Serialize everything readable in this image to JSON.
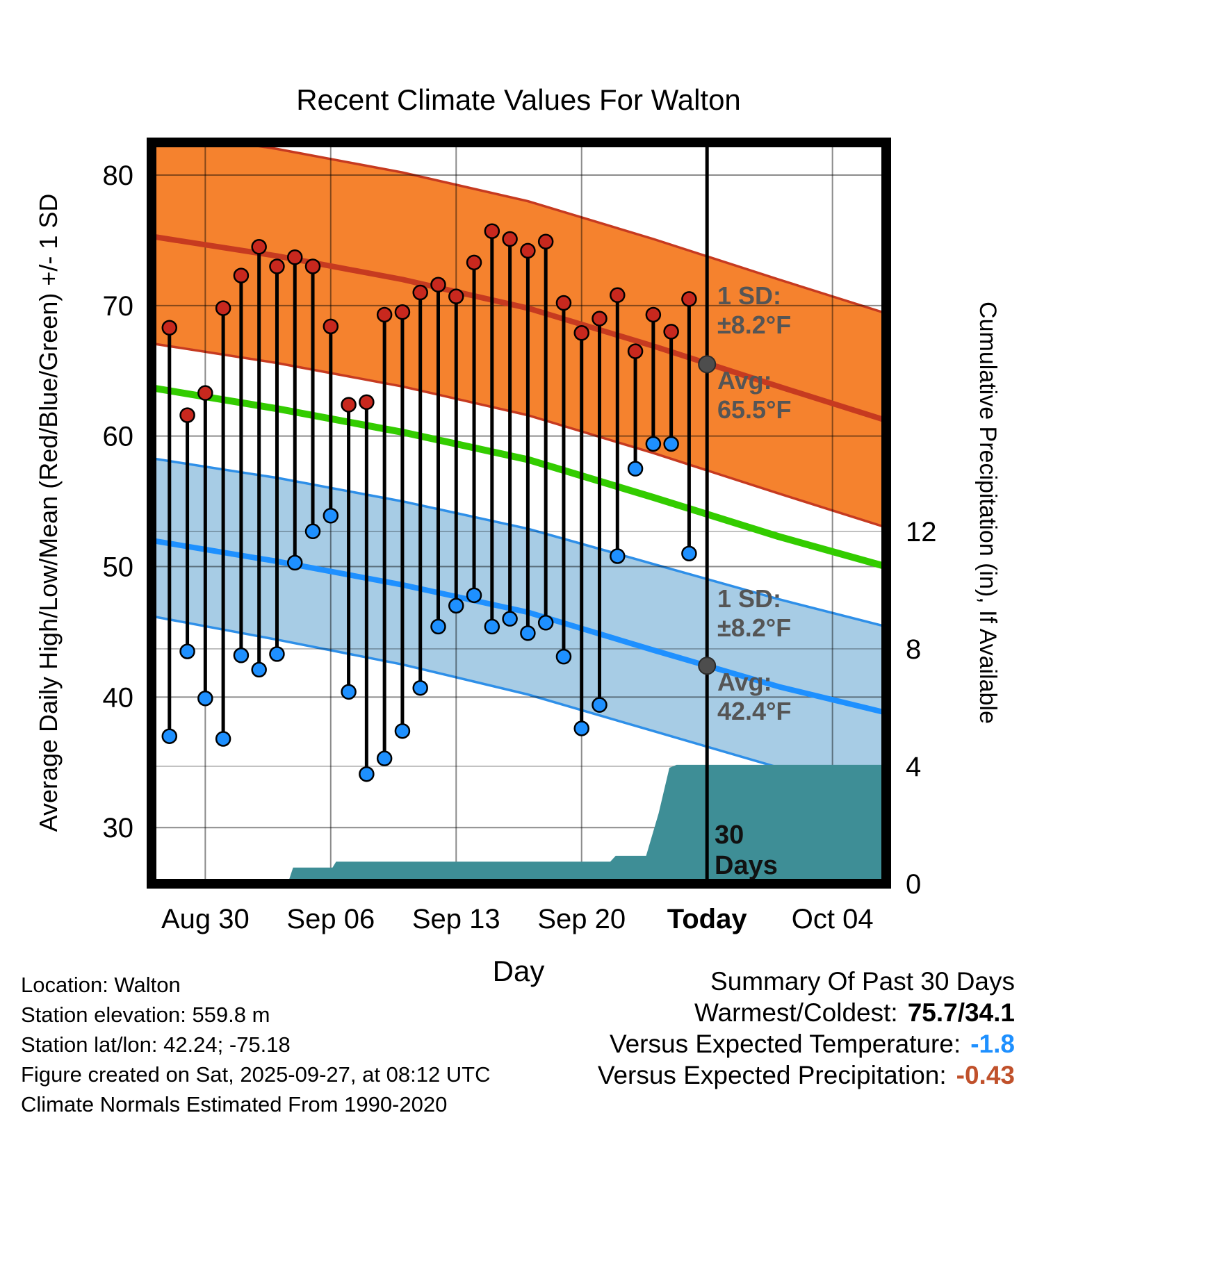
{
  "title": "Recent Climate Values For Walton",
  "axes": {
    "left_label": "Average Daily High/Low/Mean (Red/Blue/Green) +/- 1 SD",
    "right_label": "Cumulative Precipitation (in), If Available",
    "x_label": "Day"
  },
  "chart_data": {
    "type": "line",
    "title": "Recent Climate Values For Walton",
    "xlabel": "Day",
    "ylabel_left": "Average Daily High/Low/Mean (Red/Blue/Green) +/- 1 SD",
    "ylabel_right": "Cumulative Precipitation (in), If Available",
    "x_domain": [
      0,
      41
    ],
    "x_unit": "days, 0 = Aug 27",
    "temp_axis": {
      "min": 25.7,
      "max": 82.5,
      "ticks": [
        30,
        40,
        50,
        60,
        70,
        80
      ]
    },
    "precip_axis": {
      "min": 0,
      "max": 25.25,
      "ticks": [
        0,
        4,
        8,
        12
      ]
    },
    "x_ticks": [
      {
        "day": 3,
        "label": "Aug 30",
        "bold": false
      },
      {
        "day": 10,
        "label": "Sep 06",
        "bold": false
      },
      {
        "day": 17,
        "label": "Sep 13",
        "bold": false
      },
      {
        "day": 24,
        "label": "Sep 20",
        "bold": false
      },
      {
        "day": 31,
        "label": "Today",
        "bold": true
      },
      {
        "day": 38,
        "label": "Oct 04",
        "bold": false
      }
    ],
    "today": {
      "day_index": 31,
      "label": "Today",
      "high_avg": 65.5,
      "low_avg": 42.4,
      "sd": 8.2
    },
    "daily": {
      "dates": [
        "Aug 28",
        "Aug 29",
        "Aug 30",
        "Aug 31",
        "Sep 01",
        "Sep 02",
        "Sep 03",
        "Sep 04",
        "Sep 05",
        "Sep 06",
        "Sep 07",
        "Sep 08",
        "Sep 09",
        "Sep 10",
        "Sep 11",
        "Sep 12",
        "Sep 13",
        "Sep 14",
        "Sep 15",
        "Sep 16",
        "Sep 17",
        "Sep 18",
        "Sep 19",
        "Sep 20",
        "Sep 21",
        "Sep 22",
        "Sep 23",
        "Sep 24",
        "Sep 25",
        "Sep 26"
      ],
      "day_index": [
        1,
        2,
        3,
        4,
        5,
        6,
        7,
        8,
        9,
        10,
        11,
        12,
        13,
        14,
        15,
        16,
        17,
        18,
        19,
        20,
        21,
        22,
        23,
        24,
        25,
        26,
        27,
        28,
        29,
        30
      ],
      "high": [
        68.3,
        61.6,
        63.3,
        69.8,
        72.3,
        74.5,
        73.0,
        73.7,
        73.0,
        68.4,
        62.4,
        62.6,
        69.3,
        69.5,
        71.0,
        71.6,
        70.7,
        73.3,
        75.7,
        75.1,
        74.2,
        74.9,
        70.2,
        67.9,
        69.0,
        70.8,
        66.5,
        69.3,
        68.0,
        70.5
      ],
      "low": [
        37.0,
        43.5,
        39.9,
        36.8,
        43.2,
        42.1,
        43.3,
        50.3,
        52.7,
        53.9,
        40.4,
        34.1,
        35.3,
        37.4,
        40.7,
        45.4,
        47.0,
        47.8,
        45.4,
        46.0,
        44.9,
        45.7,
        43.1,
        37.6,
        39.4,
        50.8,
        57.5,
        59.4,
        59.4,
        51.0
      ]
    },
    "normals": {
      "day_index": [
        0,
        7,
        14,
        21,
        28,
        35,
        41
      ],
      "high_mean": [
        75.3,
        73.8,
        72.0,
        69.8,
        66.9,
        63.8,
        61.2
      ],
      "high_upper": [
        83.5,
        82.0,
        80.2,
        78.0,
        75.1,
        72.0,
        69.4
      ],
      "high_lower": [
        67.1,
        65.6,
        63.8,
        61.6,
        58.7,
        55.6,
        53.0
      ],
      "mean": [
        63.7,
        62.1,
        60.3,
        58.2,
        55.3,
        52.3,
        50.0
      ],
      "low_mean": [
        52.0,
        50.4,
        48.6,
        46.5,
        43.6,
        40.8,
        38.8
      ],
      "low_upper": [
        58.3,
        56.8,
        55.0,
        52.9,
        50.2,
        47.5,
        45.4
      ],
      "low_lower": [
        46.2,
        44.4,
        42.5,
        40.2,
        37.4,
        34.6,
        32.4
      ]
    },
    "precip_cumulative": {
      "day_index": [
        0,
        7.6,
        7.9,
        10.1,
        10.3,
        25.6,
        25.9,
        27.6,
        28.3,
        28.9,
        29.3,
        41
      ],
      "inches": [
        0,
        0,
        0.55,
        0.55,
        0.75,
        0.75,
        0.95,
        0.95,
        2.4,
        3.95,
        4.05,
        4.05
      ]
    }
  },
  "annotations": {
    "high_sd": [
      "1 SD:",
      "±8.2°F"
    ],
    "high_avg": [
      "Avg:",
      "65.5°F"
    ],
    "low_sd": [
      "1 SD:",
      "±8.2°F"
    ],
    "low_avg": [
      "Avg:",
      "42.4°F"
    ],
    "period": [
      "30",
      "Days"
    ]
  },
  "footer": {
    "left_lines": [
      "Location: Walton",
      "Station elevation: 559.8 m",
      "Station lat/lon: 42.24; -75.18",
      "Figure created on Sat, 2025-09-27, at 08:12 UTC",
      "Climate Normals Estimated From 1990-2020"
    ],
    "summary": {
      "title": "Summary Of Past 30 Days",
      "rows": [
        {
          "label": "Warmest/Coldest:",
          "value": "75.7/34.1",
          "value_color": "#000000"
        },
        {
          "label": "Versus Expected Temperature:",
          "value": "-1.8",
          "value_color": "#1E90FF"
        },
        {
          "label": "Versus Expected Precipitation:",
          "value": "-0.43",
          "value_color": "#C0512B"
        }
      ]
    }
  },
  "colors": {
    "high_band": "#F5822E",
    "high_edge": "#C63A20",
    "high_line": "#C63A20",
    "mean_line": "#33CC00",
    "low_band": "#A7CCE5",
    "low_edge": "#2E8FE8",
    "low_line": "#1E90FF",
    "precip_fill": "#3E8E96",
    "stem": "#000000",
    "high_dot": "#C8281E",
    "low_dot": "#1E90FF",
    "today_line": "#000000",
    "today_marker": "#4D4D4D",
    "annotation_text": "#555555",
    "grid": "#000000"
  }
}
